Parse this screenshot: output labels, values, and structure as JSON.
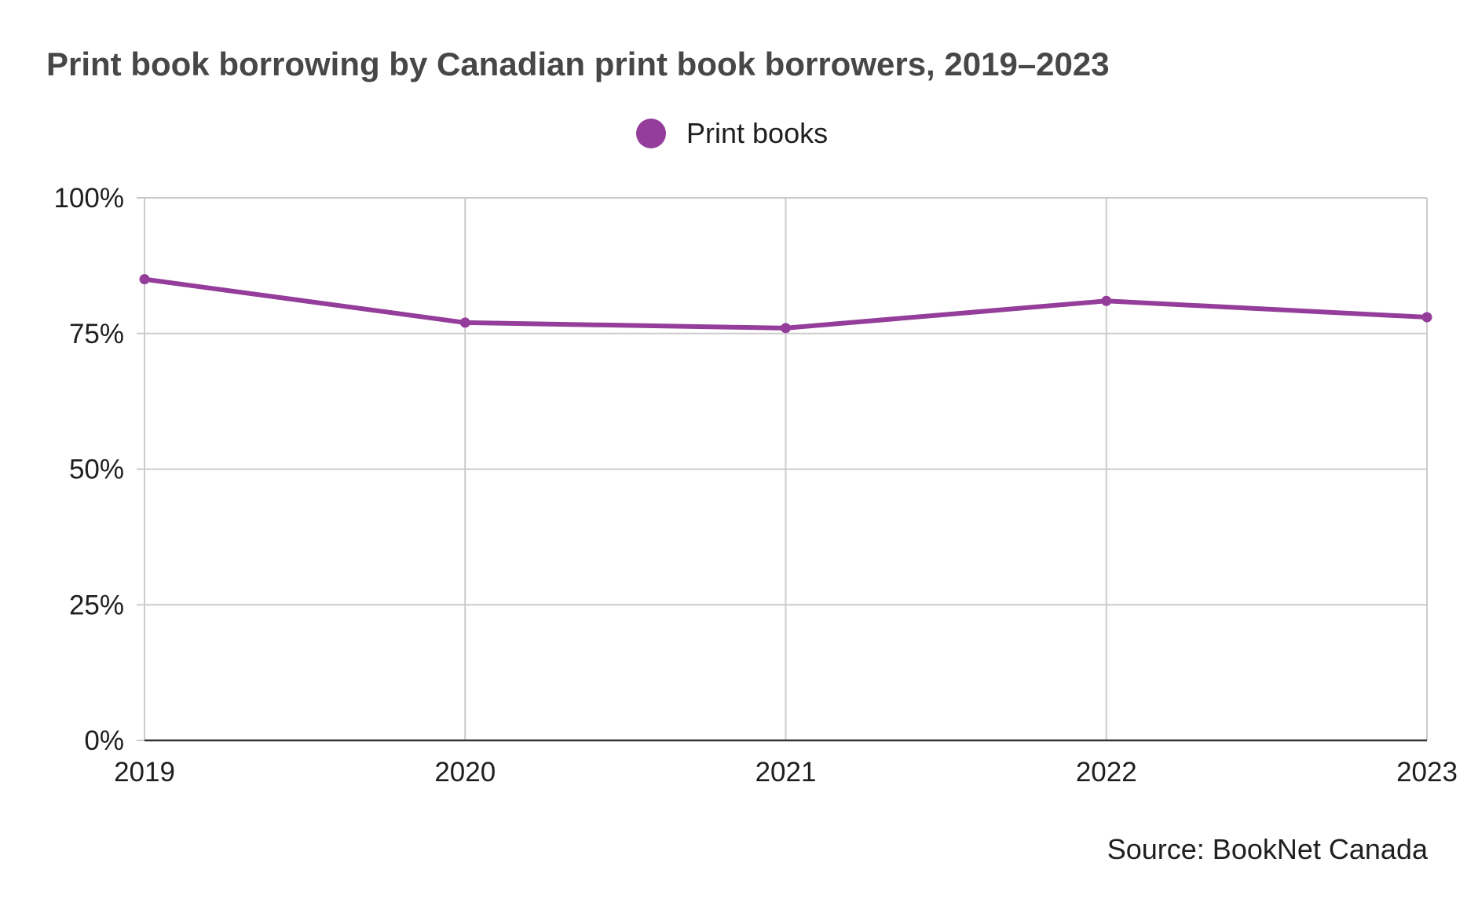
{
  "chart_data": {
    "type": "line",
    "title": "Print book borrowing by Canadian print book borrowers, 2019–2023",
    "xlabel": "",
    "ylabel": "",
    "x": [
      "2019",
      "2020",
      "2021",
      "2022",
      "2023"
    ],
    "series": [
      {
        "name": "Print books",
        "values": [
          85,
          77,
          76,
          81,
          78
        ],
        "color": "#943d9a"
      }
    ],
    "ylim": [
      0,
      100
    ],
    "yticks": [
      0,
      25,
      50,
      75,
      100
    ],
    "ytick_labels": [
      "0%",
      "25%",
      "50%",
      "75%",
      "100%"
    ],
    "grid": true,
    "legend_position": "top-center",
    "source": "Source: BookNet Canada"
  },
  "colors": {
    "series": "#943d9a",
    "grid": "#cccccc",
    "axis": "#333333",
    "title": "#474747"
  }
}
